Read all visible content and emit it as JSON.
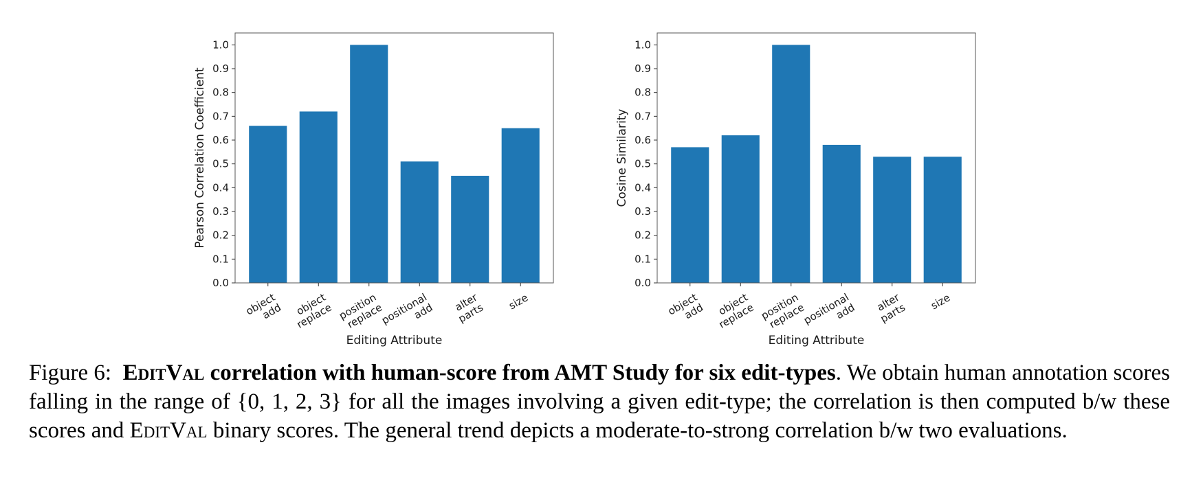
{
  "chart_data": [
    {
      "type": "bar",
      "categories": [
        [
          "object",
          "add"
        ],
        [
          "object",
          "replace"
        ],
        [
          "position",
          "replace"
        ],
        [
          "positional",
          "add"
        ],
        [
          "alter",
          "parts"
        ],
        [
          "size"
        ]
      ],
      "values": [
        0.66,
        0.72,
        1.0,
        0.51,
        0.45,
        0.65
      ],
      "color": "#1f77b4",
      "xlabel": "Editing Attribute",
      "ylabel": "Pearson Correlation Coefficient",
      "ylim": [
        0,
        1.05
      ],
      "yticks": [
        "0.0",
        "0.1",
        "0.2",
        "0.3",
        "0.4",
        "0.5",
        "0.6",
        "0.7",
        "0.8",
        "0.9",
        "1.0"
      ],
      "grid": false
    },
    {
      "type": "bar",
      "categories": [
        [
          "object",
          "add"
        ],
        [
          "object",
          "replace"
        ],
        [
          "position",
          "replace"
        ],
        [
          "positional",
          "add"
        ],
        [
          "alter",
          "parts"
        ],
        [
          "size"
        ]
      ],
      "values": [
        0.57,
        0.62,
        1.0,
        0.58,
        0.53,
        0.53
      ],
      "color": "#1f77b4",
      "xlabel": "Editing Attribute",
      "ylabel": "Cosine Similarity",
      "ylim": [
        0,
        1.05
      ],
      "yticks": [
        "0.0",
        "0.1",
        "0.2",
        "0.3",
        "0.4",
        "0.5",
        "0.6",
        "0.7",
        "0.8",
        "0.9",
        "1.0"
      ],
      "grid": false
    }
  ],
  "caption": {
    "prefix": "Figure 6:",
    "bold_sc1": "EditVal",
    "bold_rest": "correlation with human-score from AMT Study for six edit-types",
    "text1": ". We obtain human annotation scores falling in the range of {0, 1, 2, 3} for all the images involving a given edit-type; the correlation is then computed b/w these scores and",
    "sc2": "EditVal",
    "text2": "binary scores. The general trend depicts a moderate-to-strong correlation b/w two evaluations."
  }
}
